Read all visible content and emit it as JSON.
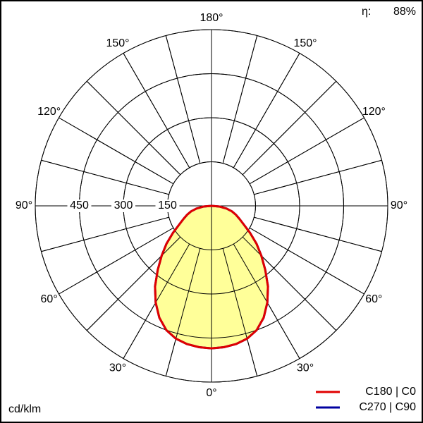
{
  "chart_data": {
    "type": "polar",
    "unit_label": "cd/klm",
    "efficiency_label": "η:",
    "efficiency": "88%",
    "x": [
      0,
      5,
      10,
      15,
      20,
      25,
      30,
      35,
      40,
      45,
      50,
      55,
      60,
      65,
      70,
      75,
      80,
      85,
      90
    ],
    "series": [
      {
        "name": "C270 | C90",
        "color": "#0000a0",
        "values": [
          485,
          483,
          478,
          468,
          450,
          420,
          380,
          335,
          285,
          240,
          200,
          160,
          127,
          105,
          88,
          72,
          52,
          28,
          0
        ]
      },
      {
        "name": "C180 | C0",
        "color": "#e00000",
        "values": [
          485,
          483,
          478,
          468,
          450,
          420,
          380,
          335,
          285,
          240,
          200,
          160,
          127,
          105,
          88,
          72,
          52,
          28,
          0
        ]
      }
    ],
    "fill_color": "#ffff99",
    "rlim": [
      0,
      600
    ],
    "rticks": [
      150,
      300,
      450
    ],
    "angle_ticks": [
      {
        "value": 0,
        "label": "0°"
      },
      {
        "value": 30,
        "label": "30°"
      },
      {
        "value": 60,
        "label": "60°"
      },
      {
        "value": 90,
        "label": "90°"
      },
      {
        "value": 120,
        "label": "120°"
      },
      {
        "value": 150,
        "label": "150°"
      },
      {
        "value": 180,
        "label": "180°"
      }
    ]
  }
}
